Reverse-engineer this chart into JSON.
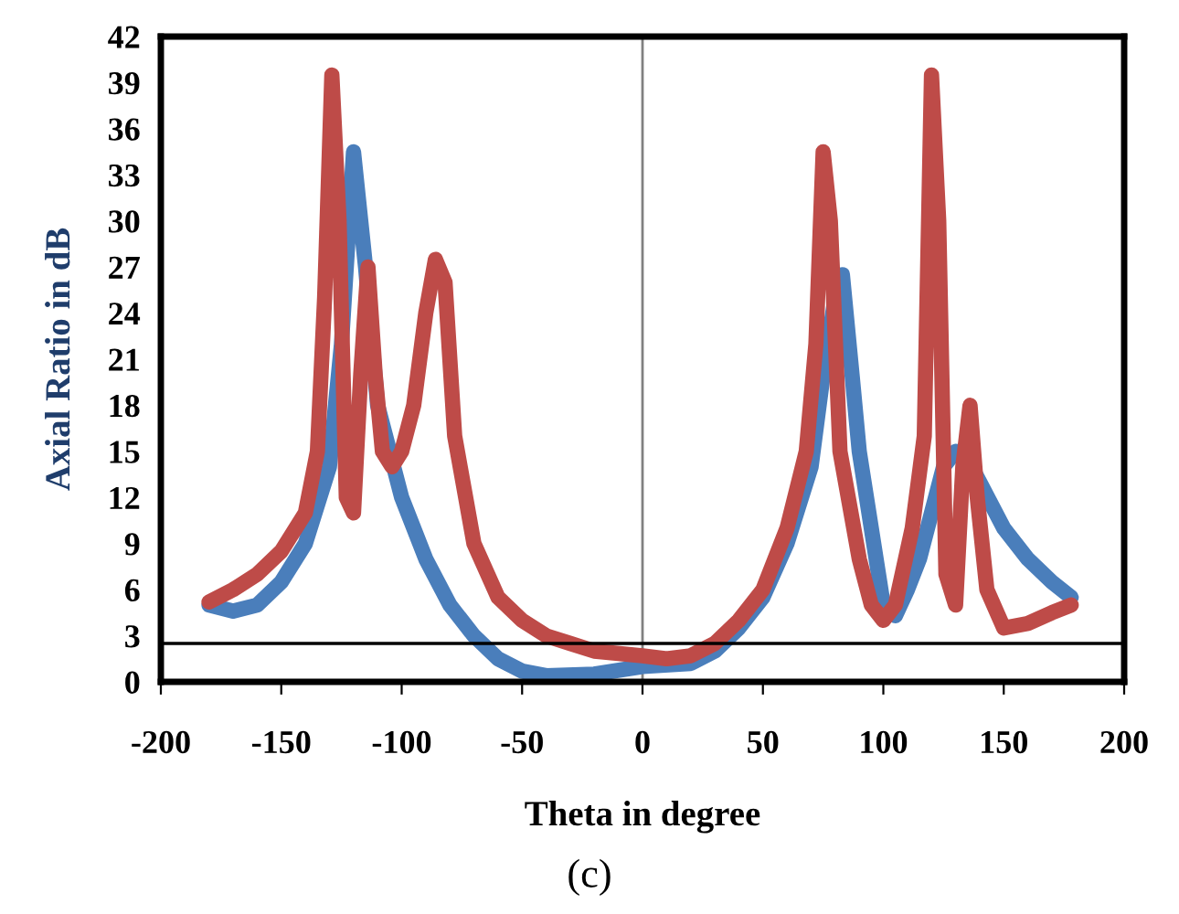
{
  "chart_data": {
    "type": "line",
    "xlabel": "Theta in degree",
    "ylabel": "Axial Ratio in dB",
    "annotations": [
      "(c)"
    ],
    "xlim": [
      -200,
      200
    ],
    "xticks": [
      -200,
      -150,
      -100,
      -50,
      0,
      50,
      100,
      150,
      200
    ],
    "ylim": [
      0,
      42
    ],
    "yticks": [
      0,
      3,
      6,
      9,
      12,
      15,
      18,
      21,
      24,
      27,
      30,
      33,
      36,
      39,
      42
    ],
    "grid": false,
    "legend": false,
    "ref_lines": [
      {
        "axis": "y",
        "value": 2.5,
        "color": "#000000"
      },
      {
        "axis": "x",
        "value": 0,
        "color": "#808080"
      }
    ],
    "series": [
      {
        "color": "#4a7ebb",
        "x": [
          -180,
          -170,
          -160,
          -150,
          -140,
          -130,
          -125,
          -120,
          -115,
          -110,
          -100,
          -90,
          -80,
          -70,
          -60,
          -50,
          -40,
          -20,
          0,
          20,
          30,
          40,
          50,
          60,
          70,
          75,
          80,
          83,
          87,
          90,
          95,
          100,
          105,
          110,
          115,
          120,
          125,
          130,
          135,
          140,
          150,
          160,
          170,
          178
        ],
        "values": [
          5,
          4.6,
          5,
          6.5,
          9,
          14,
          22,
          34.5,
          27,
          18,
          12,
          8,
          5,
          3,
          1.5,
          0.7,
          0.4,
          0.5,
          1,
          1.2,
          2,
          3.5,
          5.5,
          9,
          14,
          20,
          25,
          26.5,
          20,
          15,
          10,
          5,
          4.3,
          6,
          8,
          11,
          14,
          15,
          14.5,
          13,
          10,
          8,
          6.5,
          5.5
        ]
      },
      {
        "color": "#be4b48",
        "x": [
          -180,
          -170,
          -160,
          -150,
          -140,
          -135,
          -132,
          -129,
          -126,
          -123,
          -120,
          -117,
          -114,
          -111,
          -108,
          -104,
          -100,
          -95,
          -90,
          -86,
          -82,
          -78,
          -70,
          -60,
          -50,
          -40,
          -30,
          -20,
          0,
          10,
          20,
          30,
          40,
          50,
          60,
          68,
          72,
          75,
          78,
          82,
          90,
          95,
          100,
          105,
          112,
          117,
          120,
          123,
          126,
          130,
          133,
          136,
          139,
          143,
          150,
          160,
          170,
          178
        ],
        "values": [
          5.2,
          6,
          7,
          8.5,
          11,
          15,
          25,
          39.5,
          30,
          12,
          11,
          20,
          27,
          20,
          15,
          14,
          15,
          18,
          24,
          27.5,
          26,
          16,
          9,
          5.5,
          4,
          3,
          2.5,
          2,
          1.7,
          1.5,
          1.7,
          2.5,
          4,
          6,
          10,
          15,
          22,
          34.5,
          30,
          15,
          8,
          5,
          4,
          5,
          10,
          16,
          39.5,
          30,
          7,
          5,
          14,
          18,
          12,
          6,
          3.5,
          3.8,
          4.5,
          5
        ]
      }
    ]
  }
}
